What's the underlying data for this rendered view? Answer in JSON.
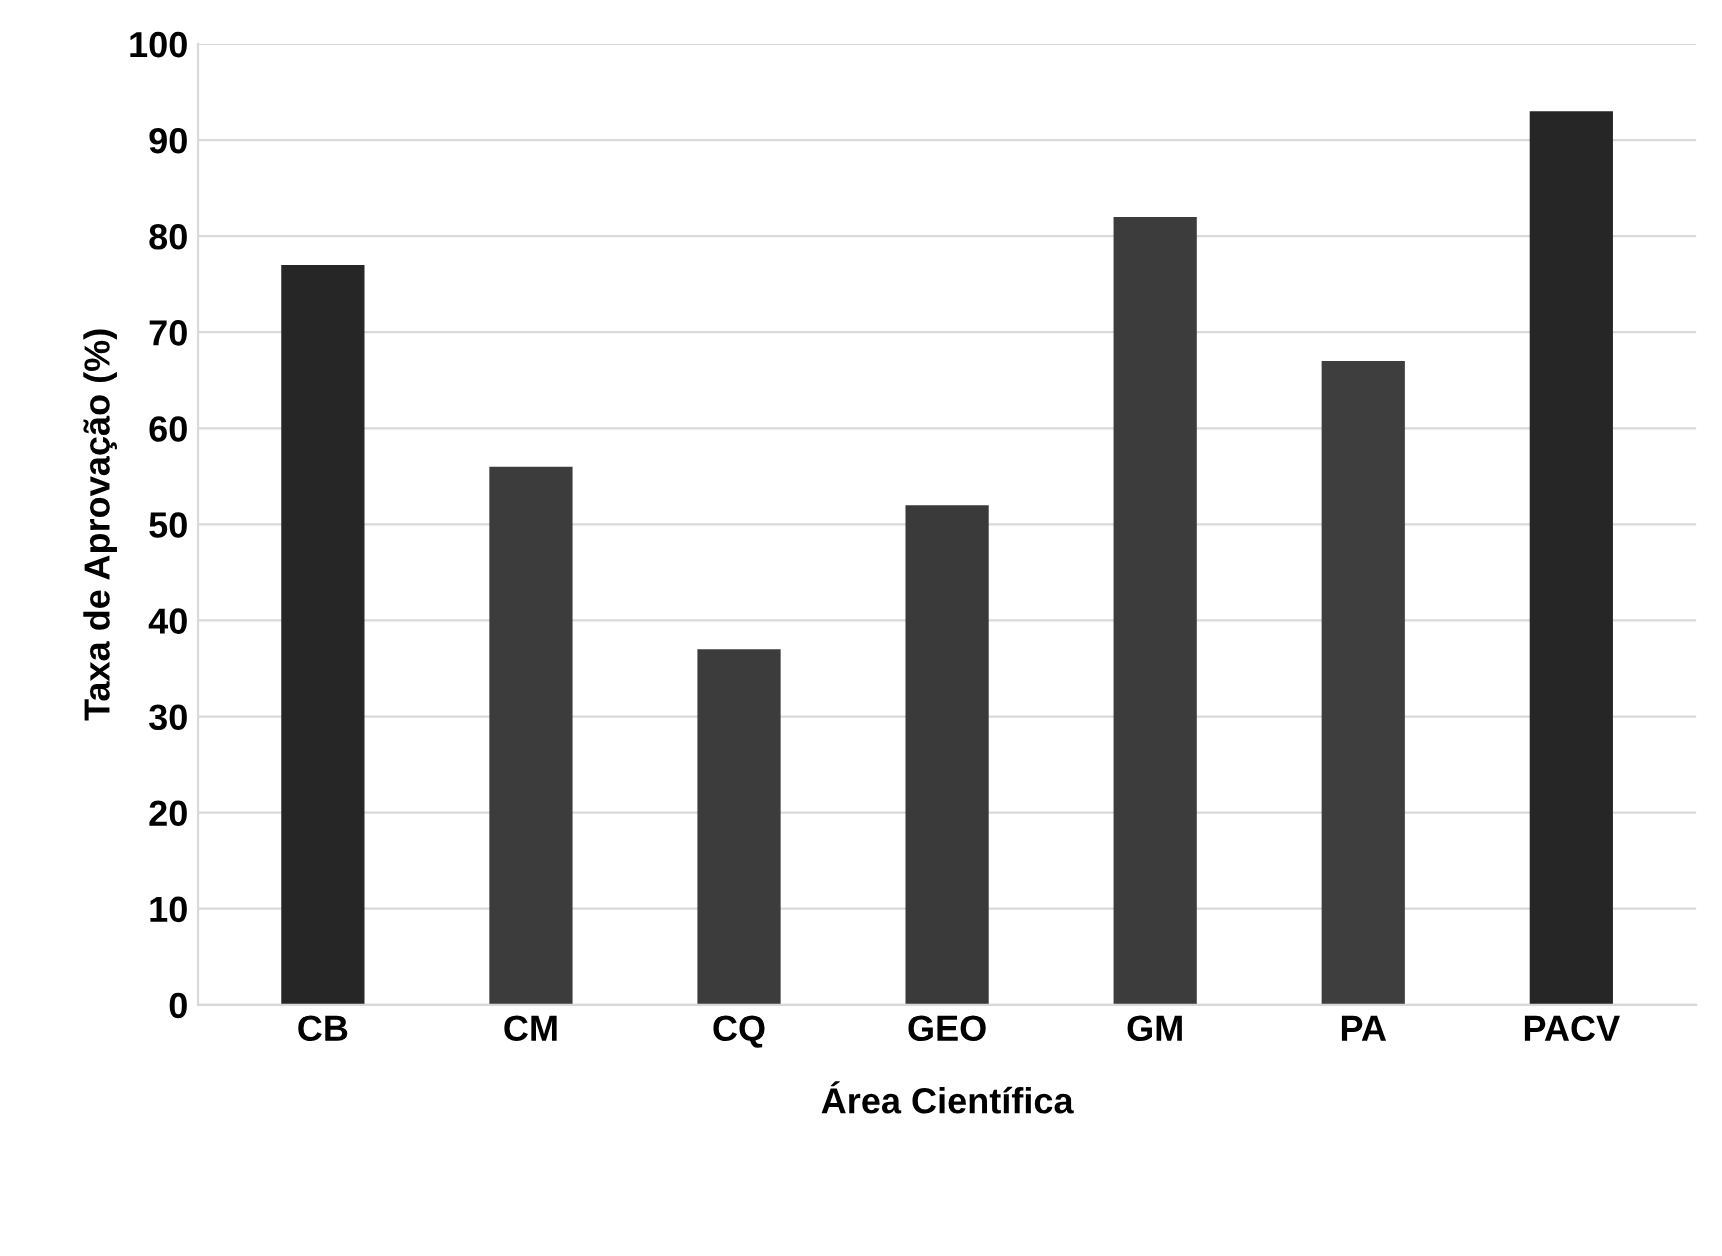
{
  "chart_data": {
    "type": "bar",
    "xlabel": "Área Científica",
    "ylabel": "Taxa de Aprovação (%)",
    "categories": [
      "CB",
      "CM",
      "CQ",
      "GEO",
      "GM",
      "PA",
      "PACV"
    ],
    "values": [
      77,
      56,
      37,
      52,
      82,
      67,
      93
    ],
    "colors": [
      "#262626",
      "#3c3c3c",
      "#3c3c3c",
      "#3a3a3a",
      "#3c3c3c",
      "#3e3e3e",
      "#262626"
    ],
    "ylim": [
      0,
      100
    ],
    "yticks": [
      0,
      10,
      20,
      30,
      40,
      50,
      60,
      70,
      80,
      90,
      100
    ],
    "grid": "y"
  }
}
